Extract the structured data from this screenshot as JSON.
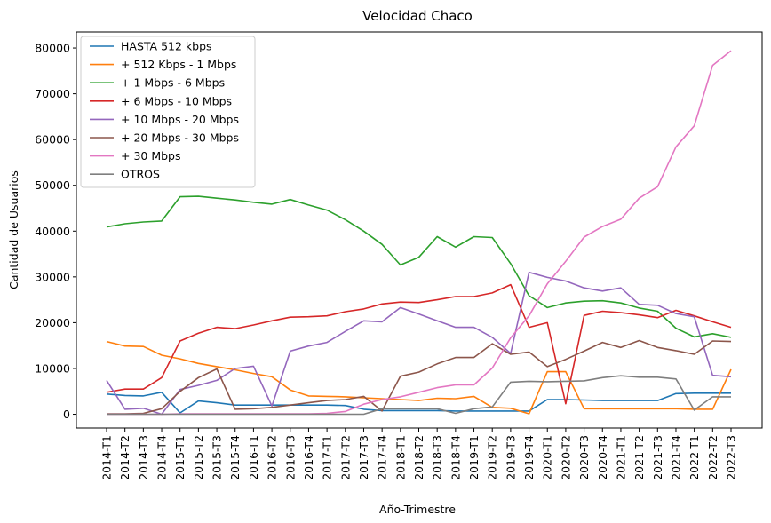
{
  "chart_data": {
    "type": "line",
    "title": "Velocidad Chaco",
    "xlabel": "Año-Trimestre",
    "ylabel": "Cantidad de Usuarios",
    "ylim": [
      -3000,
      83500
    ],
    "yticks": [
      0,
      10000,
      20000,
      30000,
      40000,
      50000,
      60000,
      70000,
      80000
    ],
    "grid": false,
    "legend_position": "upper-left",
    "categories": [
      "2014-T1",
      "2014-T2",
      "2014-T3",
      "2014-T4",
      "2015-T1",
      "2015-T2",
      "2015-T3",
      "2015-T4",
      "2016-T1",
      "2016-T2",
      "2016-T3",
      "2016-T4",
      "2017-T1",
      "2017-T2",
      "2017-T3",
      "2017-T4",
      "2018-T1",
      "2018-T2",
      "2018-T3",
      "2018-T4",
      "2019-T1",
      "2019-T2",
      "2019-T3",
      "2019-T4",
      "2020-T1",
      "2020-T2",
      "2020-T3",
      "2020-T4",
      "2021-T1",
      "2021-T2",
      "2021-T3",
      "2021-T4",
      "2022-T1",
      "2022-T2",
      "2022-T3"
    ],
    "series": [
      {
        "name": "HASTA 512 kbps",
        "color": "#1f77b4",
        "values": [
          4400,
          4100,
          4000,
          4800,
          300,
          2900,
          2500,
          2000,
          2000,
          2000,
          2000,
          2000,
          2000,
          1900,
          1100,
          800,
          800,
          800,
          800,
          700,
          700,
          700,
          700,
          700,
          3200,
          3200,
          3100,
          3000,
          3000,
          3000,
          3000,
          4500,
          4600,
          4600,
          4600
        ]
      },
      {
        "name": "+ 512 Kbps - 1 Mbps",
        "color": "#ff7f0e",
        "values": [
          15900,
          14900,
          14800,
          12900,
          12100,
          11100,
          10400,
          9700,
          8900,
          8200,
          5300,
          4000,
          3900,
          3800,
          3600,
          3400,
          3200,
          3000,
          3500,
          3400,
          3900,
          1500,
          1300,
          100,
          9300,
          9300,
          1200,
          1200,
          1200,
          1200,
          1200,
          1200,
          1100,
          1100,
          9800
        ]
      },
      {
        "name": "+ 1 Mbps - 6 Mbps",
        "color": "#2ca02c",
        "values": [
          40900,
          41600,
          42000,
          42200,
          47500,
          47600,
          47200,
          46800,
          46300,
          45900,
          46900,
          45700,
          44600,
          42500,
          40000,
          37100,
          32600,
          34300,
          38800,
          36500,
          38800,
          38600,
          32900,
          25900,
          23300,
          24300,
          24700,
          24800,
          24300,
          23200,
          22500,
          18800,
          16900,
          17600,
          16800
        ]
      },
      {
        "name": "+ 6 Mbps - 10 Mbps",
        "color": "#d62728",
        "values": [
          4800,
          5500,
          5500,
          8000,
          16000,
          17700,
          19000,
          18700,
          19500,
          20400,
          21200,
          21300,
          21500,
          22400,
          23000,
          24100,
          24500,
          24400,
          25000,
          25700,
          25700,
          26500,
          28300,
          19000,
          20000,
          2300,
          21600,
          22500,
          22200,
          21700,
          21100,
          22700,
          21500,
          20200,
          19000
        ]
      },
      {
        "name": "+ 10 Mbps - 20 Mbps",
        "color": "#9467bd",
        "values": [
          7400,
          1100,
          1300,
          0,
          5400,
          6300,
          7400,
          10000,
          10500,
          1800,
          13800,
          14900,
          15700,
          18100,
          20400,
          20200,
          23300,
          21900,
          20400,
          19000,
          19000,
          16800,
          13300,
          31000,
          29900,
          29100,
          27600,
          26900,
          27600,
          24000,
          23800,
          22000,
          21300,
          8500,
          8200
        ]
      },
      {
        "name": "+ 20 Mbps - 30 Mbps",
        "color": "#8c564b",
        "values": [
          100,
          100,
          200,
          1200,
          5000,
          8000,
          9900,
          1100,
          1200,
          1500,
          2000,
          2500,
          3000,
          3200,
          3900,
          700,
          8300,
          9200,
          11000,
          12400,
          12400,
          15400,
          13100,
          13600,
          10400,
          12000,
          13800,
          15700,
          14600,
          16100,
          14600,
          13900,
          13100,
          16000,
          15900
        ]
      },
      {
        "name": "+ 30 Mbps",
        "color": "#e377c2",
        "values": [
          0,
          0,
          0,
          0,
          100,
          100,
          100,
          100,
          100,
          100,
          100,
          100,
          200,
          600,
          2200,
          3200,
          3800,
          4800,
          5800,
          6400,
          6400,
          10100,
          16700,
          21500,
          28500,
          33400,
          38700,
          41000,
          42600,
          47200,
          49700,
          58400,
          63000,
          76200,
          79400
        ]
      },
      {
        "name": "OTROS",
        "color": "#7f7f7f",
        "values": [
          0,
          0,
          0,
          0,
          0,
          0,
          0,
          0,
          0,
          0,
          0,
          0,
          0,
          0,
          0,
          1200,
          1200,
          1200,
          1200,
          200,
          1200,
          1600,
          7000,
          7200,
          7100,
          7200,
          7300,
          8000,
          8400,
          8100,
          8100,
          7700,
          900,
          3800,
          3800
        ]
      }
    ]
  }
}
